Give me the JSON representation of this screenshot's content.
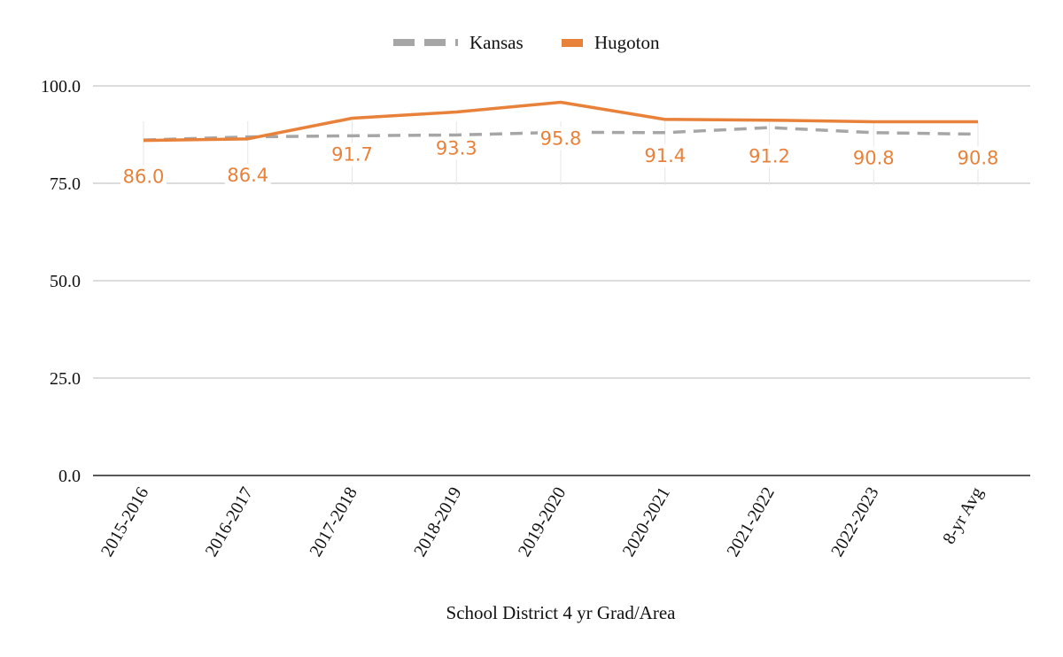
{
  "chart_data": {
    "type": "line",
    "title": "",
    "xlabel": "School District 4 yr Grad/Area",
    "ylabel": "",
    "ylim": [
      0,
      100
    ],
    "yticks": [
      "0.0",
      "25.0",
      "50.0",
      "75.0",
      "100.0"
    ],
    "grid": true,
    "legend_position": "top-center",
    "categories": [
      "2015-2016",
      "2016-2017",
      "2017-2018",
      "2018-2019",
      "2019-2020",
      "2020-2021",
      "2021-2022",
      "2022-2023",
      "8-yr Avg"
    ],
    "series": [
      {
        "name": "Kansas",
        "color": "#a6a6a6",
        "style": "dashed",
        "values": [
          86.1,
          86.9,
          87.2,
          87.4,
          88.1,
          88.0,
          89.3,
          88.0,
          87.6
        ]
      },
      {
        "name": "Hugoton",
        "color": "#e8813a",
        "style": "solid",
        "values": [
          86.0,
          86.4,
          91.7,
          93.3,
          95.8,
          91.4,
          91.2,
          90.8,
          90.8
        ],
        "data_labels": [
          "86.0",
          "86.4",
          "91.7",
          "93.3",
          "95.8",
          "91.4",
          "91.2",
          "90.8",
          "90.8"
        ]
      }
    ]
  }
}
